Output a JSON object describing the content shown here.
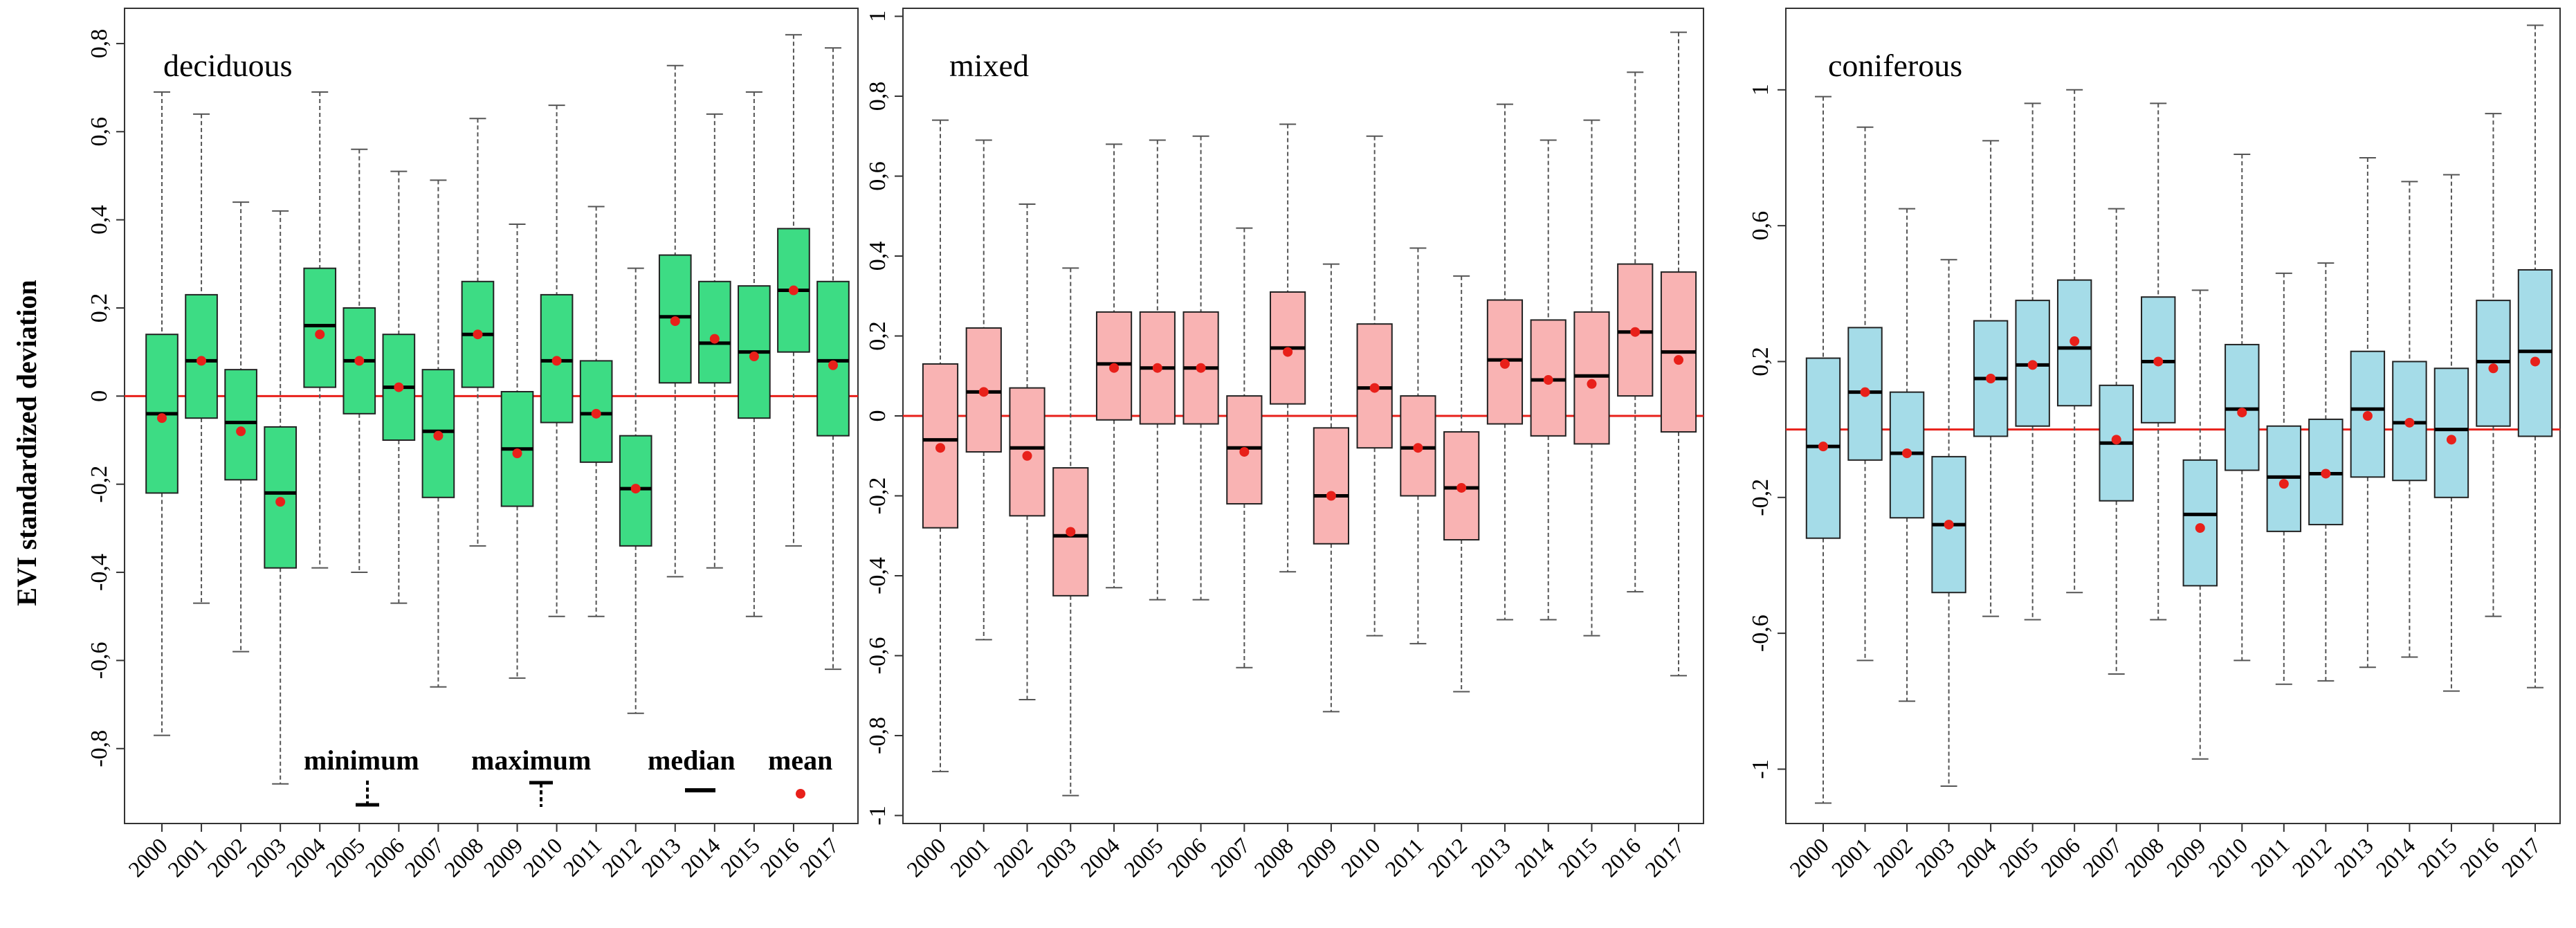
{
  "colors": {
    "deciduous_fill": "#3ddc84",
    "mixed_fill": "#f9b3b3",
    "coniferous_fill": "#a5dce8",
    "box_stroke": "#222222",
    "whisker": "#555555",
    "median": "#000000",
    "mean": "#e8201a",
    "zero_line": "#e8201a"
  },
  "ylabel": "EVI standardized deviation",
  "legend": {
    "minimum": "minimum",
    "maximum": "maximum",
    "median": "median",
    "mean": "mean"
  },
  "chart_data": [
    {
      "type": "box",
      "title": "deciduous",
      "categories": [
        "2000",
        "2001",
        "2002",
        "2003",
        "2004",
        "2005",
        "2006",
        "2007",
        "2008",
        "2009",
        "2010",
        "2011",
        "2012",
        "2013",
        "2014",
        "2015",
        "2016",
        "2017"
      ],
      "ylim": [
        -0.97,
        0.88
      ],
      "yticks": [
        -0.8,
        -0.6,
        -0.4,
        -0.2,
        0,
        0.2,
        0.4,
        0.6,
        0.8
      ],
      "ytick_labels": [
        "-0,8",
        "-0,6",
        "-0,4",
        "-0,2",
        "0",
        "0,2",
        "0,4",
        "0,6",
        "0,8"
      ],
      "min": [
        -0.77,
        -0.47,
        -0.58,
        -0.88,
        -0.39,
        -0.4,
        -0.47,
        -0.66,
        -0.34,
        -0.64,
        -0.5,
        -0.5,
        -0.72,
        -0.41,
        -0.39,
        -0.5,
        -0.34,
        -0.62
      ],
      "q1": [
        -0.22,
        -0.05,
        -0.19,
        -0.39,
        0.02,
        -0.04,
        -0.1,
        -0.23,
        0.02,
        -0.25,
        -0.06,
        -0.15,
        -0.34,
        0.03,
        0.03,
        -0.05,
        0.1,
        -0.09
      ],
      "median": [
        -0.04,
        0.08,
        -0.06,
        -0.22,
        0.16,
        0.08,
        0.02,
        -0.08,
        0.14,
        -0.12,
        0.08,
        -0.04,
        -0.21,
        0.18,
        0.12,
        0.1,
        0.24,
        0.08
      ],
      "q3": [
        0.14,
        0.23,
        0.06,
        -0.07,
        0.29,
        0.2,
        0.14,
        0.06,
        0.26,
        0.01,
        0.23,
        0.08,
        -0.09,
        0.32,
        0.26,
        0.25,
        0.38,
        0.26
      ],
      "max": [
        0.69,
        0.64,
        0.44,
        0.42,
        0.69,
        0.56,
        0.51,
        0.49,
        0.63,
        0.39,
        0.66,
        0.43,
        0.29,
        0.75,
        0.64,
        0.69,
        0.82,
        0.79
      ],
      "mean": [
        -0.05,
        0.08,
        -0.08,
        -0.24,
        0.14,
        0.08,
        0.02,
        -0.09,
        0.14,
        -0.13,
        0.08,
        -0.04,
        -0.21,
        0.17,
        0.13,
        0.09,
        0.24,
        0.07
      ]
    },
    {
      "type": "box",
      "title": "mixed",
      "categories": [
        "2000",
        "2001",
        "2002",
        "2003",
        "2004",
        "2005",
        "2006",
        "2007",
        "2008",
        "2009",
        "2010",
        "2011",
        "2012",
        "2013",
        "2014",
        "2015",
        "2016",
        "2017"
      ],
      "ylim": [
        -1.02,
        1.02
      ],
      "yticks": [
        -1,
        -0.8,
        -0.6,
        -0.4,
        -0.2,
        0,
        0.2,
        0.4,
        0.6,
        0.8,
        1
      ],
      "ytick_labels": [
        "-1",
        "-0,8",
        "-0,6",
        "-0,4",
        "-0,2",
        "0",
        "0,2",
        "0,4",
        "0,6",
        "0,8",
        "1"
      ],
      "min": [
        -0.89,
        -0.56,
        -0.71,
        -0.95,
        -0.43,
        -0.46,
        -0.46,
        -0.63,
        -0.39,
        -0.74,
        -0.55,
        -0.57,
        -0.69,
        -0.51,
        -0.51,
        -0.55,
        -0.44,
        -0.65
      ],
      "q1": [
        -0.28,
        -0.09,
        -0.25,
        -0.45,
        -0.01,
        -0.02,
        -0.02,
        -0.22,
        0.03,
        -0.32,
        -0.08,
        -0.2,
        -0.31,
        -0.02,
        -0.05,
        -0.07,
        0.05,
        -0.04
      ],
      "median": [
        -0.06,
        0.06,
        -0.08,
        -0.3,
        0.13,
        0.12,
        0.12,
        -0.08,
        0.17,
        -0.2,
        0.07,
        -0.08,
        -0.18,
        0.14,
        0.09,
        0.1,
        0.21,
        0.16
      ],
      "q3": [
        0.13,
        0.22,
        0.07,
        -0.13,
        0.26,
        0.26,
        0.26,
        0.05,
        0.31,
        -0.03,
        0.23,
        0.05,
        -0.04,
        0.29,
        0.24,
        0.26,
        0.38,
        0.36
      ],
      "max": [
        0.74,
        0.69,
        0.53,
        0.37,
        0.68,
        0.69,
        0.7,
        0.47,
        0.73,
        0.38,
        0.7,
        0.42,
        0.35,
        0.78,
        0.69,
        0.74,
        0.86,
        0.96
      ],
      "mean": [
        -0.08,
        0.06,
        -0.1,
        -0.29,
        0.12,
        0.12,
        0.12,
        -0.09,
        0.16,
        -0.2,
        0.07,
        -0.08,
        -0.18,
        0.13,
        0.09,
        0.08,
        0.21,
        0.14
      ]
    },
    {
      "type": "box",
      "title": "coniferous",
      "categories": [
        "2000",
        "2001",
        "2002",
        "2003",
        "2004",
        "2005",
        "2006",
        "2007",
        "2008",
        "2009",
        "2010",
        "2011",
        "2012",
        "2013",
        "2014",
        "2015",
        "2016",
        "2017"
      ],
      "ylim": [
        -1.16,
        1.24
      ],
      "yticks": [
        -1,
        -0.6,
        -0.2,
        0.2,
        0.6,
        1
      ],
      "ytick_labels": [
        "-1",
        "-0,6",
        "-0,2",
        "0,2",
        "0,6",
        "1"
      ],
      "min": [
        -1.1,
        -0.68,
        -0.8,
        -1.05,
        -0.55,
        -0.56,
        -0.48,
        -0.72,
        -0.56,
        -0.97,
        -0.68,
        -0.75,
        -0.74,
        -0.7,
        -0.67,
        -0.77,
        -0.55,
        -0.76
      ],
      "q1": [
        -0.32,
        -0.09,
        -0.26,
        -0.48,
        -0.02,
        0.01,
        0.07,
        -0.21,
        0.02,
        -0.46,
        -0.12,
        -0.3,
        -0.28,
        -0.14,
        -0.15,
        -0.2,
        0.01,
        -0.02
      ],
      "median": [
        -0.05,
        0.11,
        -0.07,
        -0.28,
        0.15,
        0.19,
        0.24,
        -0.04,
        0.2,
        -0.25,
        0.06,
        -0.14,
        -0.13,
        0.06,
        0.02,
        0.0,
        0.2,
        0.23
      ],
      "q3": [
        0.21,
        0.3,
        0.11,
        -0.08,
        0.32,
        0.38,
        0.44,
        0.13,
        0.39,
        -0.09,
        0.25,
        0.01,
        0.03,
        0.23,
        0.2,
        0.18,
        0.38,
        0.47
      ],
      "max": [
        0.98,
        0.89,
        0.65,
        0.5,
        0.85,
        0.96,
        1.0,
        0.65,
        0.96,
        0.41,
        0.81,
        0.46,
        0.49,
        0.8,
        0.73,
        0.75,
        0.93,
        1.19
      ],
      "mean": [
        -0.05,
        0.11,
        -0.07,
        -0.28,
        0.15,
        0.19,
        0.26,
        -0.03,
        0.2,
        -0.29,
        0.05,
        -0.16,
        -0.13,
        0.04,
        0.02,
        -0.03,
        0.18,
        0.2
      ]
    }
  ]
}
